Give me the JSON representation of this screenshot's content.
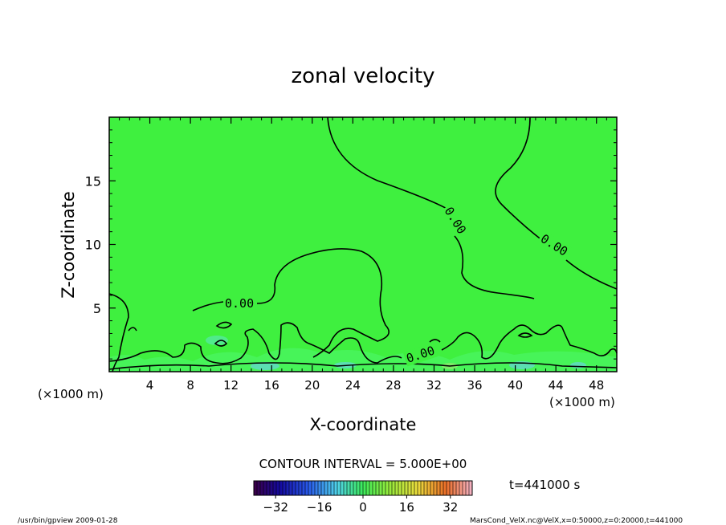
{
  "chart_data": {
    "type": "contour",
    "title": "zonal velocity",
    "xlabel": "X-coordinate",
    "ylabel": "Z-coordinate",
    "x_unit_label": "(×1000 m)",
    "y_unit_label": "(×1000 m)",
    "xlim": [
      0,
      50
    ],
    "ylim": [
      0,
      20
    ],
    "x_ticks": [
      4,
      8,
      12,
      16,
      20,
      24,
      28,
      32,
      36,
      40,
      44,
      48
    ],
    "y_ticks": [
      5,
      10,
      15
    ],
    "contour_interval_text": "CONTOUR INTERVAL = 5.000E+00",
    "contour_labels": [
      "0.00",
      "0.00",
      "0.00",
      "0.00"
    ],
    "colorbar_ticks": [
      -32,
      -16,
      0,
      16,
      32
    ],
    "colorbar_range": [
      -40,
      40
    ],
    "time_label": "t=441000 s",
    "grid": false,
    "background_color": "#3ff03f"
  },
  "footer": {
    "left": "/usr/bin/gpview   2009-01-28",
    "right": "MarsCond_VelX.nc@VelX,x=0:50000,z=0:20000,t=441000"
  }
}
